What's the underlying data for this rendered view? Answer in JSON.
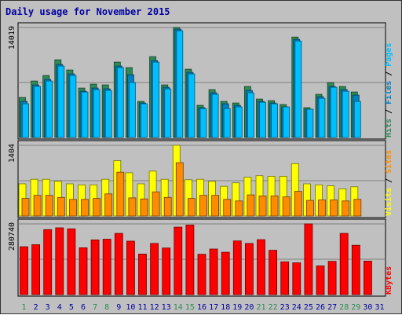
{
  "colors": {
    "background": "#c0c0c0",
    "hits": "#2e8b57",
    "files": "#0080c0",
    "pages": "#00bfff",
    "visits": "#ffff00",
    "sites": "#ff8c00",
    "kbytes": "#ff0000",
    "title": "#0000a0",
    "day_weekday": "#0000a0",
    "day_weekend": "#2e8b57"
  },
  "chart_data": {
    "title": "Daily usage for November 2015",
    "type": "bar",
    "days": [
      "1",
      "2",
      "3",
      "4",
      "5",
      "6",
      "7",
      "8",
      "9",
      "10",
      "11",
      "12",
      "13",
      "14",
      "15",
      "16",
      "17",
      "18",
      "19",
      "20",
      "21",
      "22",
      "23",
      "24",
      "25",
      "26",
      "27",
      "28",
      "29",
      "30",
      "31"
    ],
    "weekend_days": [
      "1",
      "7",
      "8",
      "14",
      "15",
      "21",
      "22",
      "28",
      "29"
    ],
    "panels": [
      {
        "id": "hits-files-pages",
        "scale_label": "14019",
        "ymax": 14019,
        "label_parts": [
          "Hits",
          "Files",
          "Pages"
        ],
        "series": [
          {
            "name": "Hits",
            "values": [
              5100,
              7200,
              7900,
              9900,
              8600,
              6300,
              6800,
              6700,
              9600,
              8900,
              4600,
              10300,
              6700,
              14019,
              8700,
              4100,
              6100,
              4600,
              4400,
              6500,
              4900,
              4700,
              4200,
              12800,
              3800,
              5500,
              7000,
              6500,
              5800,
              0,
              0
            ]
          },
          {
            "name": "Files",
            "values": [
              4600,
              6700,
              7400,
              9300,
              8100,
              5900,
              6300,
              6200,
              9100,
              8000,
              4400,
              9800,
              6400,
              13800,
              8300,
              3800,
              5700,
              4300,
              4100,
              6000,
              4600,
              4400,
              3900,
              12500,
              3600,
              5200,
              6500,
              6100,
              5400,
              0,
              0
            ]
          },
          {
            "name": "Pages",
            "values": [
              4300,
              6500,
              7200,
              9100,
              7900,
              5800,
              6100,
              6000,
              8900,
              7000,
              4300,
              9600,
              6200,
              13600,
              8100,
              3700,
              5500,
              3700,
              3900,
              5700,
              4500,
              4300,
              3900,
              12300,
              3600,
              5000,
              6400,
              5900,
              4600,
              0,
              0
            ]
          }
        ]
      },
      {
        "id": "visits-sites",
        "scale_label": "1404",
        "ymax": 1404,
        "label_parts": [
          "Visits",
          "Sites"
        ],
        "series": [
          {
            "name": "Visits",
            "values": [
              640,
              730,
              730,
              690,
              640,
              620,
              620,
              730,
              1100,
              860,
              640,
              890,
              730,
              1404,
              720,
              730,
              690,
              590,
              660,
              770,
              800,
              790,
              790,
              1040,
              640,
              620,
              600,
              540,
              580,
              0,
              0
            ]
          },
          {
            "name": "Sites",
            "values": [
              350,
              410,
              410,
              370,
              330,
              330,
              350,
              440,
              870,
              360,
              340,
              480,
              370,
              1060,
              350,
              410,
              410,
              330,
              300,
              420,
              400,
              400,
              380,
              490,
              310,
              320,
              320,
              300,
              330,
              0,
              0
            ]
          }
        ]
      },
      {
        "id": "kbytes",
        "scale_label": "280740",
        "ymax": 280740,
        "label_parts": [
          "KBytes"
        ],
        "series": [
          {
            "name": "KBytes",
            "values": [
              190000,
              198000,
              258000,
              265000,
              261000,
              186000,
              217000,
              220000,
              243000,
              212000,
              161000,
              203000,
              185000,
              268000,
              276000,
              160000,
              181000,
              168000,
              213000,
              203000,
              218000,
              176000,
              130000,
              126000,
              280740,
              114000,
              132000,
              243000,
              196000,
              133000,
              0
            ]
          }
        ]
      }
    ]
  }
}
